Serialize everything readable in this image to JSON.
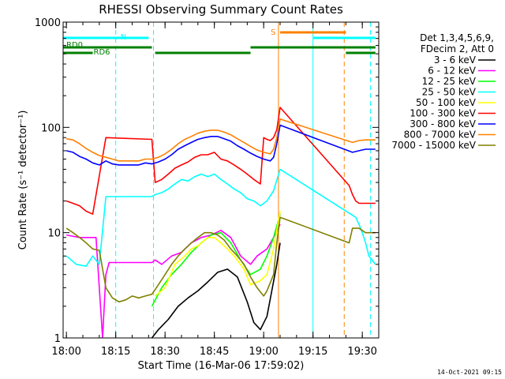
{
  "chart_data": {
    "type": "line",
    "title": "RHESSI Observing Summary Count Rates",
    "xlabel": "Start Time (16-Mar-06 17:59:02)",
    "ylabel": "Count Rate (s⁻¹ detector⁻¹)",
    "yscale": "log",
    "ylim": [
      1,
      1000
    ],
    "xlim_minutes": [
      0,
      96
    ],
    "x_ticks": [
      {
        "v": 1,
        "label": "18:00"
      },
      {
        "v": 16,
        "label": "18:15"
      },
      {
        "v": 31,
        "label": "18:30"
      },
      {
        "v": 46,
        "label": "18:45"
      },
      {
        "v": 61,
        "label": "19:00"
      },
      {
        "v": 76,
        "label": "19:15"
      },
      {
        "v": 91,
        "label": "19:30"
      }
    ],
    "y_ticks": [
      {
        "v": 1,
        "label": "1"
      },
      {
        "v": 10,
        "label": "10"
      },
      {
        "v": 100,
        "label": "100"
      },
      {
        "v": 1000,
        "label": "1000"
      }
    ],
    "legend_header": [
      "Det 1,3,4,5,6,9,",
      "FDecim 2, Att 0"
    ],
    "legend_placement": "right",
    "timestamp": "14-Oct-2021 09:15",
    "series": [
      {
        "name": "3 - 6 keV",
        "color": "#000000",
        "points": [
          [
            27,
            1
          ],
          [
            29,
            1.2
          ],
          [
            32,
            1.5
          ],
          [
            35,
            2
          ],
          [
            38,
            2.4
          ],
          [
            41,
            2.8
          ],
          [
            44,
            3.4
          ],
          [
            47,
            4.2
          ],
          [
            50,
            4.5
          ],
          [
            53,
            3.8
          ],
          [
            56,
            2.2
          ],
          [
            58,
            1.4
          ],
          [
            60,
            1.2
          ],
          [
            62,
            1.6
          ],
          [
            65,
            5
          ],
          [
            66,
            8
          ]
        ]
      },
      {
        "name": "6 - 12 keV",
        "color": "#ff00ff",
        "points": [
          [
            1,
            9.5
          ],
          [
            5,
            9
          ],
          [
            10,
            9
          ],
          [
            12,
            1
          ],
          [
            13,
            4
          ],
          [
            14,
            5.2
          ],
          [
            27,
            5.2
          ],
          [
            28,
            5.5
          ],
          [
            30,
            5
          ],
          [
            33,
            6
          ],
          [
            36,
            6.5
          ],
          [
            39,
            8
          ],
          [
            42,
            9
          ],
          [
            45,
            9.5
          ],
          [
            48,
            10.5
          ],
          [
            51,
            9
          ],
          [
            54,
            6
          ],
          [
            57,
            5
          ],
          [
            59,
            6
          ],
          [
            62,
            7
          ],
          [
            64,
            9
          ],
          [
            66,
            12
          ]
        ]
      },
      {
        "name": "12 - 25 keV",
        "color": "#00ff00",
        "points": [
          [
            27,
            2
          ],
          [
            30,
            3
          ],
          [
            33,
            4
          ],
          [
            36,
            5
          ],
          [
            39,
            6.5
          ],
          [
            42,
            8
          ],
          [
            45,
            9.5
          ],
          [
            48,
            10
          ],
          [
            51,
            8
          ],
          [
            54,
            5.5
          ],
          [
            57,
            4
          ],
          [
            60,
            4.5
          ],
          [
            62,
            6
          ],
          [
            64,
            9
          ],
          [
            66,
            15
          ]
        ]
      },
      {
        "name": "25 - 50 keV",
        "color": "#00ffff",
        "points": [
          [
            1,
            6
          ],
          [
            4,
            5
          ],
          [
            7,
            4.8
          ],
          [
            9,
            6
          ],
          [
            11,
            5
          ],
          [
            13,
            22
          ],
          [
            27,
            22
          ],
          [
            28,
            23
          ],
          [
            30,
            24
          ],
          [
            32,
            26
          ],
          [
            34,
            29
          ],
          [
            36,
            32
          ],
          [
            38,
            31
          ],
          [
            40,
            34
          ],
          [
            42,
            36
          ],
          [
            44,
            34
          ],
          [
            46,
            36
          ],
          [
            48,
            32
          ],
          [
            50,
            29
          ],
          [
            52,
            26
          ],
          [
            54,
            24
          ],
          [
            56,
            21
          ],
          [
            58,
            20
          ],
          [
            59,
            19
          ],
          [
            60,
            18
          ],
          [
            62,
            20
          ],
          [
            64,
            25
          ],
          [
            66,
            40
          ],
          [
            89,
            14
          ],
          [
            90,
            12
          ],
          [
            91,
            10
          ],
          [
            92,
            8
          ],
          [
            93,
            6
          ],
          [
            94,
            5.5
          ],
          [
            95,
            5
          ]
        ]
      },
      {
        "name": "50 - 100 keV",
        "color": "#ffff00",
        "points": [
          [
            28,
            2.5
          ],
          [
            31,
            3
          ],
          [
            34,
            5
          ],
          [
            37,
            6
          ],
          [
            39,
            7
          ],
          [
            41,
            7.5
          ],
          [
            44,
            9
          ],
          [
            46,
            9
          ],
          [
            48,
            8
          ],
          [
            50,
            7
          ],
          [
            52,
            6
          ],
          [
            55,
            4.5
          ],
          [
            57,
            3.2
          ],
          [
            60,
            3.5
          ],
          [
            62,
            4
          ],
          [
            64,
            7
          ],
          [
            66,
            16
          ]
        ]
      },
      {
        "name": "100 - 300 keV",
        "color": "#ff0000",
        "points": [
          [
            1,
            20
          ],
          [
            3,
            19
          ],
          [
            5,
            18
          ],
          [
            7,
            16
          ],
          [
            9,
            15
          ],
          [
            13,
            80
          ],
          [
            27,
            77
          ],
          [
            28,
            30
          ],
          [
            30,
            32
          ],
          [
            32,
            36
          ],
          [
            34,
            41
          ],
          [
            36,
            44
          ],
          [
            38,
            47
          ],
          [
            40,
            52
          ],
          [
            42,
            55
          ],
          [
            44,
            55
          ],
          [
            46,
            58
          ],
          [
            48,
            50
          ],
          [
            50,
            48
          ],
          [
            52,
            44
          ],
          [
            54,
            40
          ],
          [
            56,
            36
          ],
          [
            58,
            32
          ],
          [
            60,
            29
          ],
          [
            61,
            80
          ],
          [
            62,
            77
          ],
          [
            63,
            75
          ],
          [
            64,
            80
          ],
          [
            65,
            95
          ],
          [
            66,
            155
          ],
          [
            87,
            28
          ],
          [
            88,
            23
          ],
          [
            89,
            20
          ],
          [
            90,
            19
          ],
          [
            92,
            19
          ],
          [
            95,
            19
          ]
        ]
      },
      {
        "name": "300 - 800 keV",
        "color": "#0000ff",
        "points": [
          [
            1,
            60
          ],
          [
            3,
            58
          ],
          [
            5,
            53
          ],
          [
            7,
            50
          ],
          [
            9,
            46
          ],
          [
            11,
            44
          ],
          [
            13,
            48
          ],
          [
            15,
            45
          ],
          [
            17,
            44
          ],
          [
            19,
            44
          ],
          [
            21,
            44
          ],
          [
            23,
            44
          ],
          [
            25,
            46
          ],
          [
            27,
            45
          ],
          [
            29,
            47
          ],
          [
            31,
            50
          ],
          [
            33,
            55
          ],
          [
            35,
            62
          ],
          [
            37,
            67
          ],
          [
            39,
            72
          ],
          [
            41,
            77
          ],
          [
            43,
            80
          ],
          [
            45,
            82
          ],
          [
            47,
            82
          ],
          [
            49,
            78
          ],
          [
            51,
            74
          ],
          [
            53,
            67
          ],
          [
            55,
            62
          ],
          [
            57,
            57
          ],
          [
            59,
            53
          ],
          [
            61,
            50
          ],
          [
            63,
            48
          ],
          [
            64,
            52
          ],
          [
            65,
            70
          ],
          [
            66,
            105
          ],
          [
            88,
            58
          ],
          [
            90,
            60
          ],
          [
            92,
            62
          ],
          [
            95,
            62
          ]
        ]
      },
      {
        "name": "800 - 7000 keV",
        "color": "#ff8000",
        "points": [
          [
            1,
            78
          ],
          [
            3,
            76
          ],
          [
            5,
            70
          ],
          [
            7,
            63
          ],
          [
            9,
            58
          ],
          [
            11,
            54
          ],
          [
            13,
            52
          ],
          [
            15,
            50
          ],
          [
            17,
            48
          ],
          [
            19,
            48
          ],
          [
            21,
            48
          ],
          [
            23,
            48
          ],
          [
            25,
            50
          ],
          [
            27,
            50
          ],
          [
            29,
            52
          ],
          [
            31,
            56
          ],
          [
            33,
            62
          ],
          [
            35,
            70
          ],
          [
            37,
            77
          ],
          [
            39,
            82
          ],
          [
            41,
            88
          ],
          [
            43,
            92
          ],
          [
            45,
            94
          ],
          [
            47,
            94
          ],
          [
            49,
            90
          ],
          [
            51,
            85
          ],
          [
            53,
            78
          ],
          [
            55,
            72
          ],
          [
            57,
            66
          ],
          [
            59,
            61
          ],
          [
            61,
            58
          ],
          [
            63,
            56
          ],
          [
            64,
            62
          ],
          [
            65,
            80
          ],
          [
            66,
            120
          ],
          [
            88,
            72
          ],
          [
            90,
            75
          ],
          [
            92,
            76
          ],
          [
            95,
            76
          ]
        ]
      },
      {
        "name": "7000 - 15000 keV",
        "color": "#808000",
        "points": [
          [
            1,
            11
          ],
          [
            3,
            10
          ],
          [
            5,
            9
          ],
          [
            7,
            8
          ],
          [
            9,
            7
          ],
          [
            11,
            6.8
          ],
          [
            13,
            3
          ],
          [
            15,
            2.4
          ],
          [
            17,
            2.2
          ],
          [
            19,
            2.3
          ],
          [
            21,
            2.5
          ],
          [
            23,
            2.4
          ],
          [
            25,
            2.5
          ],
          [
            27,
            2.6
          ],
          [
            29,
            3.2
          ],
          [
            31,
            4
          ],
          [
            33,
            5
          ],
          [
            35,
            6
          ],
          [
            37,
            7
          ],
          [
            39,
            8
          ],
          [
            41,
            9
          ],
          [
            43,
            10
          ],
          [
            45,
            10
          ],
          [
            47,
            9.5
          ],
          [
            49,
            8.5
          ],
          [
            51,
            7
          ],
          [
            53,
            6
          ],
          [
            55,
            5
          ],
          [
            57,
            3.8
          ],
          [
            59,
            3
          ],
          [
            61,
            2.5
          ],
          [
            62,
            2.8
          ],
          [
            64,
            4
          ],
          [
            65,
            8
          ],
          [
            66,
            14
          ],
          [
            87,
            8
          ],
          [
            88,
            11
          ],
          [
            90,
            11
          ],
          [
            92,
            10
          ],
          [
            95,
            10
          ]
        ]
      }
    ],
    "status_bars": [
      {
        "label": "N",
        "color": "#00ffff",
        "level": 1,
        "segments": [
          [
            0,
            16
          ],
          [
            16,
            26
          ],
          [
            76,
            95
          ]
        ],
        "gaps": [
          16,
          26
        ]
      },
      {
        "label": "S",
        "color": "#ff8000",
        "level": 0,
        "segments": [
          [
            66,
            86
          ]
        ]
      },
      {
        "label": "RD0",
        "color": "#008000",
        "level": 2,
        "segments": [
          [
            0,
            27
          ],
          [
            57,
            95
          ]
        ]
      },
      {
        "label": "RD6",
        "color": "#008000",
        "level": 3,
        "segments": [
          [
            0,
            9
          ],
          [
            28,
            57
          ],
          [
            86,
            95
          ]
        ]
      }
    ],
    "vlines": [
      {
        "x": 0,
        "color": "#00ffff",
        "dashed": false
      },
      {
        "x": 16,
        "color": "#00ffff",
        "dashed": true
      },
      {
        "x": 27.5,
        "color": "#00ffff",
        "dashed": true
      },
      {
        "x": 65.5,
        "color": "#ff8000",
        "dashed": false
      },
      {
        "x": 76,
        "color": "#00ffff",
        "dashed": false
      },
      {
        "x": 85.5,
        "color": "#ff8000",
        "dashed": true
      },
      {
        "x": 93.5,
        "color": "#00ffff",
        "dashed": true
      }
    ]
  }
}
